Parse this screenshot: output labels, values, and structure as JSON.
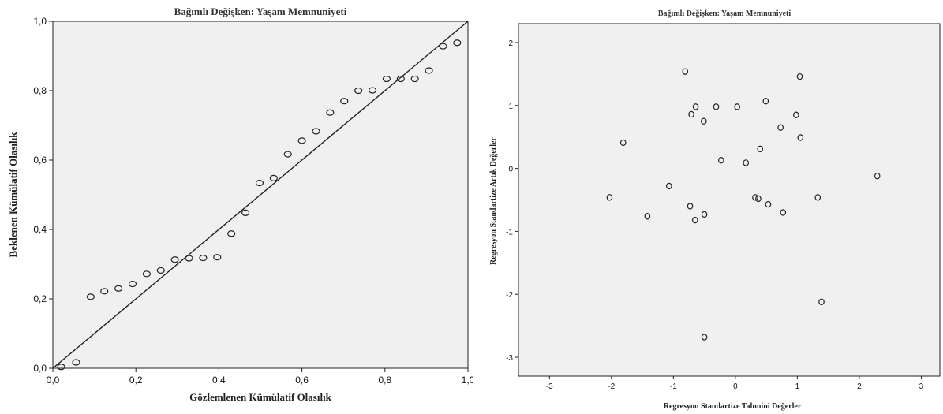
{
  "chart_data": [
    {
      "type": "scatter",
      "title": "Bağımlı Değişken: Yaşam Memnuniyeti",
      "xlabel": "Gözlemlenen Kümülatif Olasılık",
      "ylabel": "Beklenen Kümülatif Olasılık",
      "xlim": [
        0,
        1
      ],
      "ylim": [
        0,
        1
      ],
      "x_ticks": [
        "0,0",
        "0,2",
        "0,4",
        "0,6",
        "0,8",
        "1,0"
      ],
      "y_ticks": [
        "0,0",
        "0,2",
        "0,4",
        "0,6",
        "0,8",
        "1,0"
      ],
      "reference_line": {
        "from": [
          0,
          0
        ],
        "to": [
          1,
          1
        ]
      },
      "grid": false,
      "background": "#f0f0f0",
      "marker_color": "#222222",
      "points": [
        {
          "x": 0.02,
          "y": 0.004
        },
        {
          "x": 0.056,
          "y": 0.017
        },
        {
          "x": 0.091,
          "y": 0.206
        },
        {
          "x": 0.124,
          "y": 0.222
        },
        {
          "x": 0.158,
          "y": 0.23
        },
        {
          "x": 0.192,
          "y": 0.243
        },
        {
          "x": 0.226,
          "y": 0.272
        },
        {
          "x": 0.26,
          "y": 0.282
        },
        {
          "x": 0.294,
          "y": 0.313
        },
        {
          "x": 0.328,
          "y": 0.317
        },
        {
          "x": 0.362,
          "y": 0.318
        },
        {
          "x": 0.396,
          "y": 0.32
        },
        {
          "x": 0.43,
          "y": 0.388
        },
        {
          "x": 0.464,
          "y": 0.448
        },
        {
          "x": 0.498,
          "y": 0.534
        },
        {
          "x": 0.532,
          "y": 0.548
        },
        {
          "x": 0.566,
          "y": 0.617
        },
        {
          "x": 0.6,
          "y": 0.656
        },
        {
          "x": 0.634,
          "y": 0.683
        },
        {
          "x": 0.668,
          "y": 0.737
        },
        {
          "x": 0.702,
          "y": 0.77
        },
        {
          "x": 0.736,
          "y": 0.8
        },
        {
          "x": 0.77,
          "y": 0.801
        },
        {
          "x": 0.804,
          "y": 0.834
        },
        {
          "x": 0.838,
          "y": 0.834
        },
        {
          "x": 0.872,
          "y": 0.834
        },
        {
          "x": 0.906,
          "y": 0.858
        },
        {
          "x": 0.94,
          "y": 0.928
        },
        {
          "x": 0.974,
          "y": 0.938
        }
      ]
    },
    {
      "type": "scatter",
      "title": "Bağımlı Değişken: Yaşam Memnuniyeti",
      "xlabel": "Regresyon Standartize Tahmini Değerler",
      "ylabel": "Regresyon Standartize Artık Değerler",
      "xlim": [
        -3.5,
        3.3
      ],
      "ylim": [
        -3.3,
        2.3
      ],
      "x_ticks": [
        "-3",
        "-2",
        "-1",
        "0",
        "1",
        "2",
        "3"
      ],
      "y_ticks": [
        "-3",
        "-2",
        "-1",
        "0",
        "1",
        "2"
      ],
      "grid": false,
      "background": "#f0f0f0",
      "marker_color": "#222222",
      "points": [
        {
          "x": -0.81,
          "y": 1.54
        },
        {
          "x": 1.04,
          "y": 1.46
        },
        {
          "x": -0.64,
          "y": 0.98
        },
        {
          "x": -0.31,
          "y": 0.98
        },
        {
          "x": 0.03,
          "y": 0.98
        },
        {
          "x": 0.49,
          "y": 1.07
        },
        {
          "x": -0.71,
          "y": 0.86
        },
        {
          "x": -0.51,
          "y": 0.75
        },
        {
          "x": 0.98,
          "y": 0.85
        },
        {
          "x": 0.73,
          "y": 0.65
        },
        {
          "x": 1.05,
          "y": 0.49
        },
        {
          "x": -1.81,
          "y": 0.41
        },
        {
          "x": 0.4,
          "y": 0.31
        },
        {
          "x": -0.23,
          "y": 0.13
        },
        {
          "x": 0.17,
          "y": 0.09
        },
        {
          "x": 2.29,
          "y": -0.12
        },
        {
          "x": -1.07,
          "y": -0.28
        },
        {
          "x": -2.03,
          "y": -0.46
        },
        {
          "x": 0.32,
          "y": -0.46
        },
        {
          "x": 0.37,
          "y": -0.48
        },
        {
          "x": 1.33,
          "y": -0.46
        },
        {
          "x": 0.53,
          "y": -0.57
        },
        {
          "x": -0.73,
          "y": -0.6
        },
        {
          "x": 0.77,
          "y": -0.7
        },
        {
          "x": -1.42,
          "y": -0.76
        },
        {
          "x": -0.5,
          "y": -0.73
        },
        {
          "x": -0.65,
          "y": -0.82
        },
        {
          "x": 1.39,
          "y": -2.12
        },
        {
          "x": -0.5,
          "y": -2.68
        }
      ]
    }
  ]
}
